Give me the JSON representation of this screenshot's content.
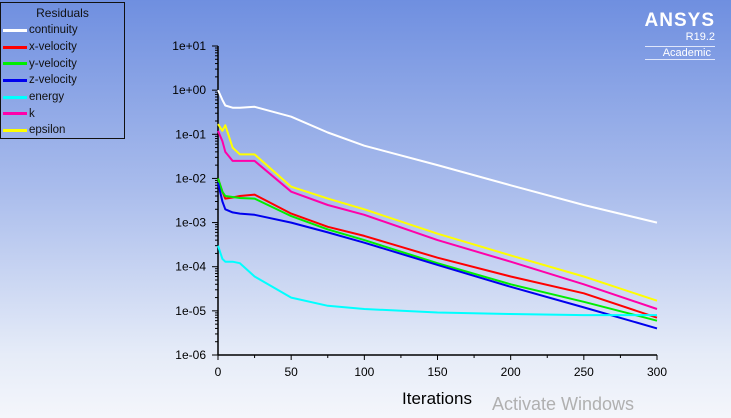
{
  "logo": {
    "name": "ANSYS",
    "version": "R19.2",
    "edition": "Academic"
  },
  "watermark": "Activate Windows",
  "chart_data": {
    "type": "line",
    "title": "",
    "xlabel": "Iterations",
    "ylabel": "",
    "xlim": [
      0,
      300
    ],
    "ylim": [
      1e-06,
      10
    ],
    "yscale": "log",
    "grid": false,
    "legend": {
      "title": "Residuals",
      "placement": "top-left"
    },
    "xticks": [
      "0",
      "50",
      "100",
      "150",
      "200",
      "250",
      "300"
    ],
    "yticks": [
      "1e+01",
      "1e+00",
      "1e-01",
      "1e-02",
      "1e-03",
      "1e-04",
      "1e-05",
      "1e-06"
    ],
    "x": [
      0,
      3,
      5,
      10,
      15,
      25,
      50,
      75,
      100,
      150,
      200,
      250,
      300
    ],
    "series": [
      {
        "name": "continuity",
        "color": "#ffffff",
        "values": [
          1.0,
          0.6,
          0.45,
          0.4,
          0.4,
          0.42,
          0.25,
          0.11,
          0.055,
          0.02,
          0.007,
          0.0025,
          0.001
        ]
      },
      {
        "name": "x-velocity",
        "color": "#ff0000",
        "values": [
          0.01,
          0.005,
          0.0035,
          0.0037,
          0.004,
          0.0043,
          0.0016,
          0.0008,
          0.0005,
          0.00016,
          6e-05,
          2.5e-05,
          7e-06
        ]
      },
      {
        "name": "y-velocity",
        "color": "#00ee00",
        "values": [
          0.01,
          0.005,
          0.004,
          0.0038,
          0.0036,
          0.0035,
          0.0014,
          0.0007,
          0.0004,
          0.00012,
          4e-05,
          1.6e-05,
          6e-06
        ]
      },
      {
        "name": "z-velocity",
        "color": "#0000ee",
        "values": [
          0.008,
          0.003,
          0.002,
          0.0017,
          0.0016,
          0.0015,
          0.001,
          0.0006,
          0.00035,
          0.00011,
          3.5e-05,
          1.2e-05,
          4e-06
        ]
      },
      {
        "name": "energy",
        "color": "#00ffff",
        "values": [
          0.0003,
          0.00015,
          0.00013,
          0.00013,
          0.00012,
          6e-05,
          2e-05,
          1.3e-05,
          1.1e-05,
          9.2e-06,
          8.5e-06,
          8e-06,
          8e-06
        ]
      },
      {
        "name": "k",
        "color": "#ff00aa",
        "values": [
          0.12,
          0.07,
          0.04,
          0.025,
          0.025,
          0.025,
          0.005,
          0.0025,
          0.0015,
          0.0004,
          0.00013,
          4e-05,
          1.1e-05
        ]
      },
      {
        "name": "epsilon",
        "color": "#ffff00",
        "values": [
          0.17,
          0.12,
          0.16,
          0.05,
          0.035,
          0.035,
          0.0065,
          0.0035,
          0.002,
          0.00056,
          0.00018,
          6e-05,
          1.7e-05
        ]
      }
    ]
  }
}
